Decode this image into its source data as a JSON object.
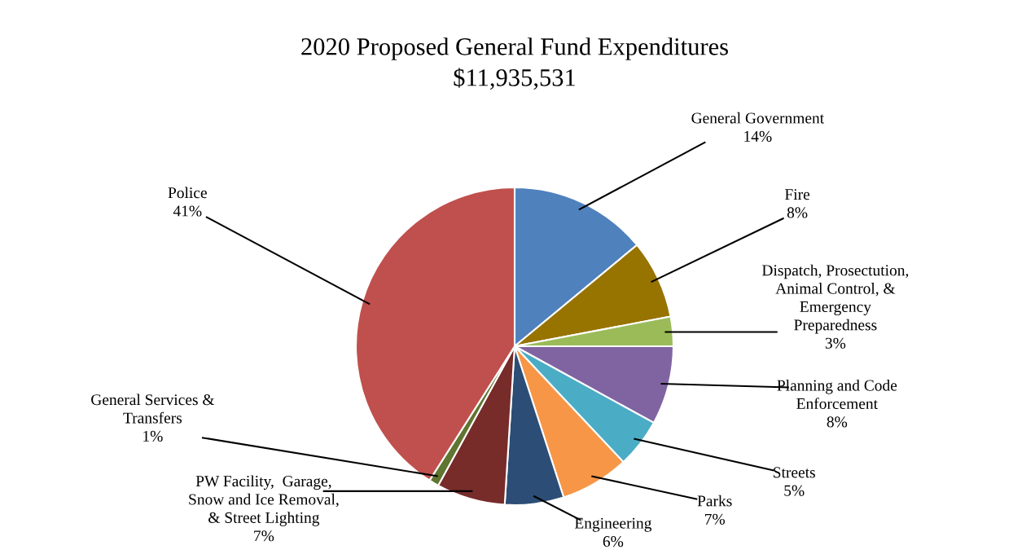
{
  "chart_data": {
    "type": "pie",
    "title": "2020 Proposed General Fund Expenditures",
    "subtitle": "$11,935,531",
    "categories": [
      "General Government",
      "Fire",
      "Dispatch, Prosectution,\nAnimal Control, &\nEmergency\nPreparedness",
      "Planning and Code\nEnforcement",
      "Streets",
      "Parks",
      "Engineering",
      "PW Facility,  Garage,\nSnow and Ice Removal,\n& Street Lighting",
      "General Services &\nTransfers",
      "Police"
    ],
    "values": [
      14,
      8,
      3,
      8,
      5,
      7,
      6,
      7,
      1,
      41
    ],
    "colors": [
      "#4f81bd",
      "#977300",
      "#9bbb59",
      "#8064a2",
      "#4bacc6",
      "#f79646",
      "#2c4d75",
      "#772c2a",
      "#5f7530",
      "#c0504d"
    ],
    "value_labels": [
      "14%",
      "8%",
      "3%",
      "8%",
      "5%",
      "7%",
      "6%",
      "7%",
      "1%",
      "41%"
    ]
  }
}
